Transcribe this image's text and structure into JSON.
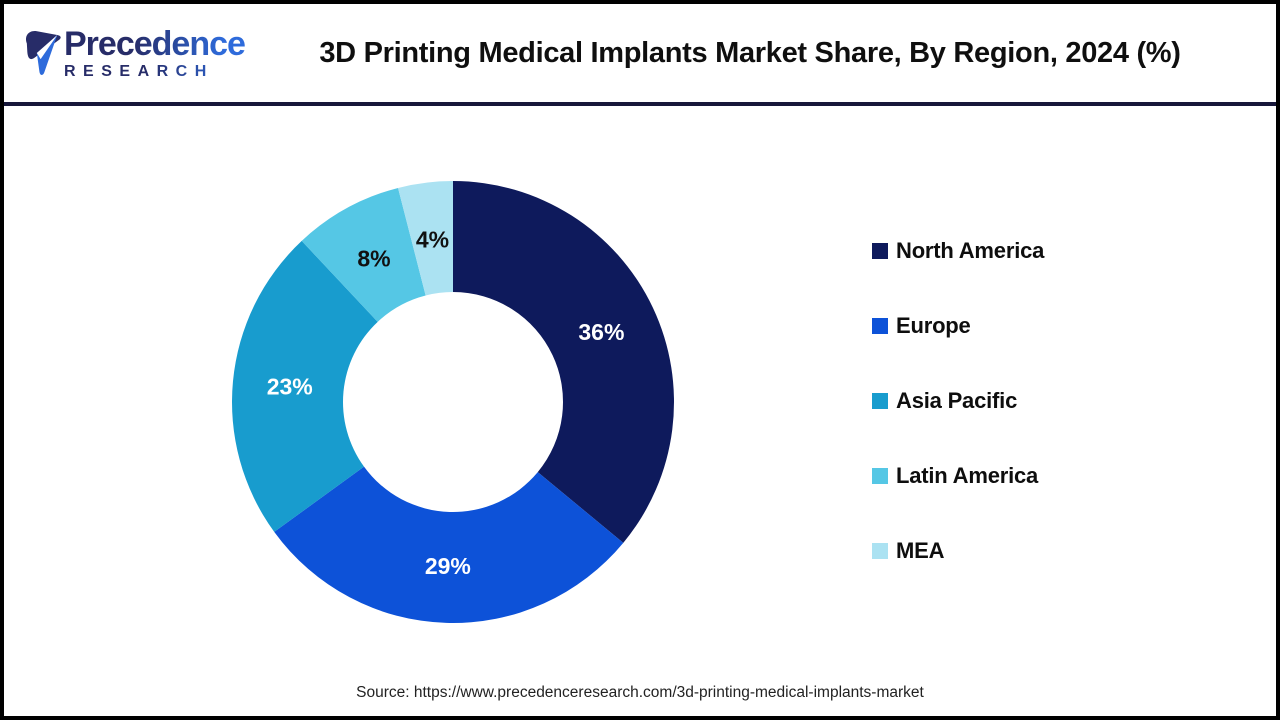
{
  "header": {
    "logo_line1": "Precedence",
    "logo_line2": "RESEARCH",
    "title": "3D Printing Medical Implants Market Share, By Region, 2024 (%)"
  },
  "chart_data": {
    "type": "pie",
    "subtype": "donut",
    "title": "3D Printing Medical Implants Market Share, By Region, 2024 (%)",
    "unit": "%",
    "start_angle_deg": 0,
    "direction": "clockwise",
    "categories": [
      "North America",
      "Europe",
      "Asia Pacific",
      "Latin America",
      "MEA"
    ],
    "values": [
      36,
      29,
      23,
      8,
      4
    ],
    "labels": [
      "36%",
      "29%",
      "23%",
      "8%",
      "4%"
    ],
    "colors": [
      "#0E1A5C",
      "#0D52D8",
      "#189CCE",
      "#55C7E5",
      "#ABE2F2"
    ],
    "label_colors": [
      "#FFFFFF",
      "#FFFFFF",
      "#FFFFFF",
      "#111111",
      "#111111"
    ],
    "legend_position": "right"
  },
  "footer": {
    "source": "Source: https://www.precedenceresearch.com/3d-printing-medical-implants-market"
  }
}
